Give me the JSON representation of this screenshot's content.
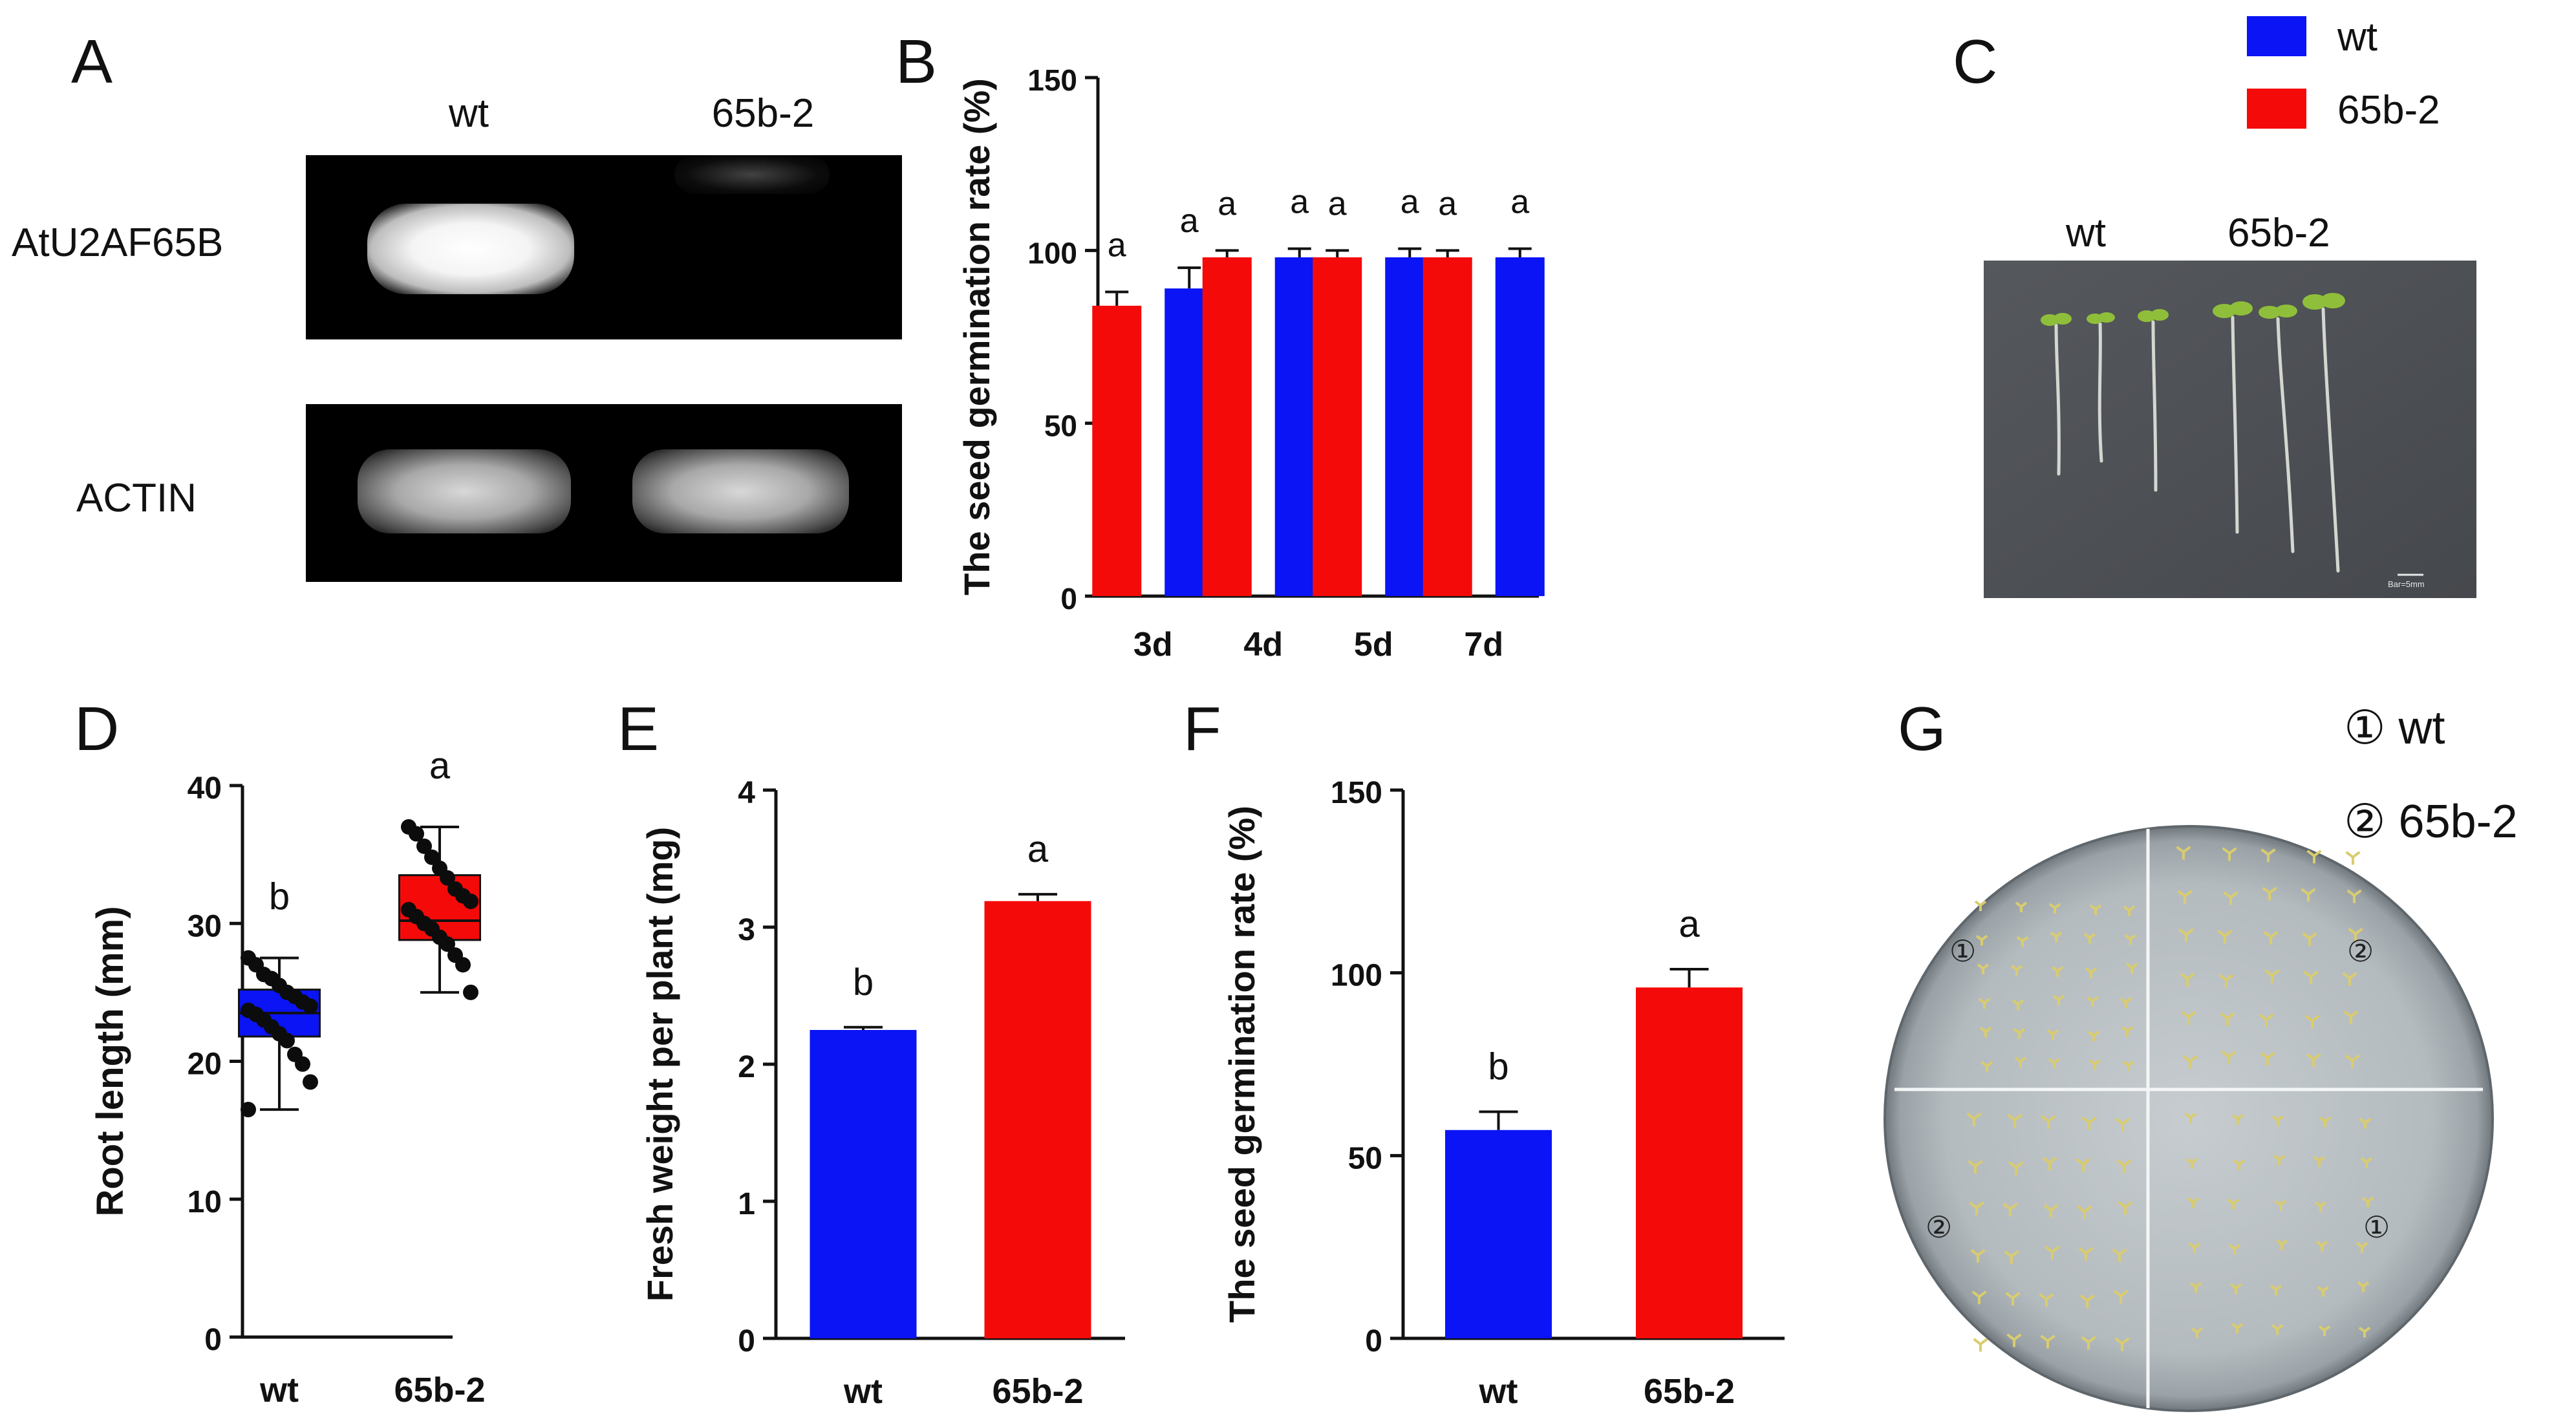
{
  "colors": {
    "wt": "#0a14f5",
    "mutant": "#f50a0a",
    "axis": "#111111",
    "gel_bg": "#000000",
    "plate_bg": "#4c5055",
    "agar": "#b9c0c4"
  },
  "panels": {
    "A": {
      "label": "A",
      "lanes": [
        "wt",
        "65b-2"
      ],
      "rows": [
        "AtU2AF65B",
        "ACTIN"
      ]
    },
    "B": {
      "label": "B"
    },
    "C": {
      "label": "C",
      "image_labels": [
        "wt",
        "65b-2"
      ],
      "scale_bar": "Bar=5mm"
    },
    "D": {
      "label": "D"
    },
    "E": {
      "label": "E"
    },
    "F": {
      "label": "F"
    },
    "G": {
      "label": "G",
      "legend": [
        "① wt",
        "② 65b-2"
      ],
      "quadrant_marks": [
        "①",
        "②",
        "②",
        "①"
      ]
    }
  },
  "legend": [
    {
      "name": "wt",
      "color": "#0a14f5"
    },
    {
      "name": "65b-2",
      "color": "#f50a0a"
    }
  ],
  "chart_data": [
    {
      "panel": "B",
      "type": "bar",
      "categories": [
        "3d",
        "4d",
        "5d",
        "7d"
      ],
      "ylabel": "The seed germination rate (%)",
      "ylim": [
        0,
        150
      ],
      "yticks": [
        0,
        50,
        100,
        150
      ],
      "series": [
        {
          "name": "65b-2",
          "color": "#f50a0a",
          "values": [
            84,
            98,
            98,
            98
          ],
          "errors": [
            4,
            2,
            2,
            2
          ],
          "letters": [
            "a",
            "a",
            "a",
            "a"
          ]
        },
        {
          "name": "wt",
          "color": "#0a14f5",
          "values": [
            89,
            98,
            98,
            98
          ],
          "errors": [
            6,
            2.5,
            2.5,
            2.5
          ],
          "letters": [
            "a",
            "a",
            "a",
            "a"
          ]
        }
      ]
    },
    {
      "panel": "D",
      "type": "box",
      "categories": [
        "wt",
        "65b-2"
      ],
      "ylabel": "Root length (mm)",
      "ylim": [
        0,
        40
      ],
      "yticks": [
        0,
        10,
        20,
        30,
        40
      ],
      "boxes": [
        {
          "name": "wt",
          "color": "#0a14f5",
          "min": 16.5,
          "q1": 21.8,
          "median": 23.5,
          "q3": 25.2,
          "max": 27.5,
          "letter": "b",
          "points": [
            27.5,
            27,
            26.3,
            26,
            25.5,
            25,
            24.7,
            24.3,
            24,
            23.7,
            23.4,
            23,
            22.5,
            22,
            21.5,
            20.5,
            19.8,
            18.5,
            16.5
          ]
        },
        {
          "name": "65b-2",
          "color": "#f50a0a",
          "min": 25,
          "q1": 28.8,
          "median": 30.2,
          "q3": 33.5,
          "max": 37,
          "letter": "a",
          "points": [
            37,
            36.5,
            35.6,
            34.8,
            34,
            33.3,
            32.5,
            32,
            31.6,
            31,
            30.5,
            30,
            29.6,
            29,
            28.5,
            27.7,
            27,
            25
          ]
        }
      ]
    },
    {
      "panel": "E",
      "type": "bar",
      "categories": [
        "wt",
        "65b-2"
      ],
      "ylabel": "Fresh weight per plant (mg)",
      "ylim": [
        0,
        4
      ],
      "yticks": [
        0,
        1,
        2,
        3,
        4
      ],
      "values": [
        2.25,
        3.19
      ],
      "errors": [
        0.02,
        0.05
      ],
      "colors": [
        "#0a14f5",
        "#f50a0a"
      ],
      "letters": [
        "b",
        "a"
      ]
    },
    {
      "panel": "F",
      "type": "bar",
      "categories": [
        "wt",
        "65b-2"
      ],
      "ylabel": "The seed germination rate (%)",
      "ylim": [
        0,
        150
      ],
      "yticks": [
        0,
        50,
        100,
        150
      ],
      "values": [
        57,
        96
      ],
      "errors": [
        5,
        5
      ],
      "colors": [
        "#0a14f5",
        "#f50a0a"
      ],
      "letters": [
        "b",
        "a"
      ]
    }
  ]
}
